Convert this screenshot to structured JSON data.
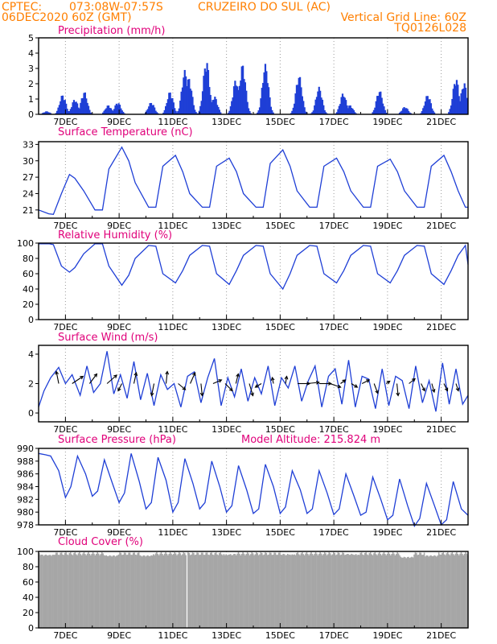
{
  "header": {
    "line1_left": "CPTEC:",
    "line1_coords": "073:08W-07:57S",
    "line1_station": "CRUZEIRO DO SUL (AC)",
    "line2_left": "06DEC2020 60Z (GMT)",
    "line2_right": "Vertical Grid Line: 60Z",
    "line3_right": "TQ0126L028"
  },
  "colors": {
    "header": "#ff7f00",
    "title": "#e0007a",
    "line": "#1f3fd6",
    "cloud": "#a6a6a6"
  },
  "x_tick_labels": [
    "7DEC",
    "9DEC",
    "11DEC",
    "13DEC",
    "15DEC",
    "17DEC",
    "19DEC",
    "21DEC"
  ],
  "chart_data": [
    {
      "type": "bar",
      "title": "Precipitation (mm/h)",
      "ylim": [
        0,
        5
      ],
      "yticks": [
        "0",
        "1",
        "2",
        "3",
        "4",
        "5"
      ],
      "grid": true,
      "peaks": [
        [
          6.3,
          0.2
        ],
        [
          6.9,
          1.3
        ],
        [
          7.35,
          1.0
        ],
        [
          7.7,
          1.5
        ],
        [
          8.6,
          0.6
        ],
        [
          8.95,
          0.8
        ],
        [
          10.2,
          0.8
        ],
        [
          10.9,
          1.5
        ],
        [
          11.45,
          2.9
        ],
        [
          11.6,
          2.4
        ],
        [
          12.25,
          3.6
        ],
        [
          12.55,
          1.2
        ],
        [
          13.35,
          2.3
        ],
        [
          13.6,
          3.3
        ],
        [
          14.45,
          3.3
        ],
        [
          15.7,
          2.6
        ],
        [
          16.45,
          1.8
        ],
        [
          17.35,
          1.4
        ],
        [
          17.6,
          0.6
        ],
        [
          18.7,
          1.6
        ],
        [
          19.65,
          0.5
        ],
        [
          20.5,
          1.3
        ],
        [
          21.55,
          2.4
        ],
        [
          21.85,
          2.1
        ]
      ],
      "spread": 0.16
    },
    {
      "type": "line",
      "title": "Surface Temperature (nC)",
      "ylim": [
        19.5,
        33.5
      ],
      "yticks": [
        "21",
        "24",
        "27",
        "30",
        "33"
      ],
      "grid": true,
      "series": [
        {
          "x": [
            6.0,
            6.38,
            6.55,
            6.85,
            7.15,
            7.35,
            7.68,
            8.1,
            8.38,
            8.62,
            9.1,
            9.36,
            9.6,
            10.1,
            10.37,
            10.63,
            11.1,
            11.37,
            11.63,
            12.1,
            12.37,
            12.63,
            13.1,
            13.37,
            13.63,
            14.1,
            14.37,
            14.63,
            15.1,
            15.37,
            15.63,
            16.1,
            16.37,
            16.63,
            17.1,
            17.37,
            17.63,
            18.1,
            18.37,
            18.63,
            19.1,
            19.37,
            19.63,
            20.1,
            20.37,
            20.63,
            21.1,
            21.37,
            21.63,
            21.9,
            22.0
          ],
          "y": [
            21.0,
            20.3,
            20.2,
            24.0,
            27.5,
            26.8,
            24.5,
            21.0,
            21.0,
            28.5,
            32.5,
            30.0,
            26.0,
            21.5,
            21.5,
            29.0,
            31.0,
            28.0,
            24.0,
            21.5,
            21.5,
            29.0,
            30.5,
            28.0,
            24.0,
            21.5,
            21.5,
            29.5,
            32.0,
            29.0,
            24.5,
            21.5,
            21.5,
            29.0,
            30.5,
            28.0,
            24.5,
            21.5,
            21.5,
            29.0,
            30.3,
            28.0,
            24.5,
            21.5,
            21.5,
            29.0,
            31.0,
            28.0,
            24.5,
            21.5,
            21.5
          ]
        }
      ]
    },
    {
      "type": "line",
      "title": "Relative Humidity (%)",
      "ylim": [
        0,
        100
      ],
      "yticks": [
        "0",
        "20",
        "40",
        "60",
        "80",
        "100"
      ],
      "grid": true,
      "series": [
        {
          "x": [
            6.0,
            6.4,
            6.55,
            6.85,
            7.15,
            7.35,
            7.68,
            8.1,
            8.38,
            8.62,
            9.1,
            9.36,
            9.6,
            10.1,
            10.37,
            10.63,
            11.1,
            11.37,
            11.63,
            12.1,
            12.37,
            12.63,
            13.1,
            13.37,
            13.63,
            14.1,
            14.37,
            14.63,
            15.1,
            15.37,
            15.63,
            16.1,
            16.37,
            16.63,
            17.1,
            17.37,
            17.63,
            18.1,
            18.37,
            18.63,
            19.1,
            19.37,
            19.63,
            20.1,
            20.37,
            20.63,
            21.1,
            21.37,
            21.63,
            21.9,
            22.0
          ],
          "y": [
            99,
            99,
            98,
            70,
            62,
            68,
            86,
            99,
            99,
            70,
            45,
            58,
            80,
            97,
            96,
            60,
            48,
            64,
            84,
            97,
            96,
            60,
            46,
            64,
            84,
            97,
            96,
            60,
            40,
            60,
            84,
            97,
            96,
            60,
            48,
            64,
            84,
            97,
            96,
            60,
            48,
            64,
            84,
            97,
            96,
            60,
            46,
            64,
            84,
            97,
            72
          ]
        }
      ]
    },
    {
      "type": "line",
      "title": "Surface Wind (m/s)",
      "ylim": [
        -0.6,
        4.6
      ],
      "yticks": [
        "0",
        "2",
        "4"
      ],
      "grid": true,
      "series": [
        {
          "x": [
            6.0,
            6.2,
            6.45,
            6.75,
            7.0,
            7.25,
            7.55,
            7.8,
            8.05,
            8.3,
            8.55,
            8.8,
            9.05,
            9.3,
            9.55,
            9.8,
            10.05,
            10.3,
            10.55,
            10.8,
            11.05,
            11.3,
            11.55,
            11.8,
            12.05,
            12.3,
            12.55,
            12.8,
            13.05,
            13.3,
            13.55,
            13.8,
            14.05,
            14.3,
            14.55,
            14.8,
            15.05,
            15.3,
            15.55,
            15.8,
            16.05,
            16.3,
            16.55,
            16.8,
            17.05,
            17.3,
            17.55,
            17.8,
            18.05,
            18.3,
            18.55,
            18.8,
            19.05,
            19.3,
            19.55,
            19.8,
            20.05,
            20.3,
            20.55,
            20.8,
            21.05,
            21.3,
            21.55,
            21.8,
            22.0
          ],
          "y": [
            0.4,
            1.5,
            2.4,
            3.1,
            2.0,
            2.6,
            1.2,
            3.2,
            1.4,
            2.0,
            4.2,
            1.3,
            2.6,
            1.0,
            3.5,
            0.9,
            2.7,
            0.5,
            2.6,
            1.6,
            2.0,
            0.4,
            2.5,
            2.8,
            0.7,
            2.4,
            3.7,
            0.5,
            2.4,
            1.1,
            3.0,
            0.8,
            2.4,
            1.3,
            3.2,
            0.5,
            2.4,
            1.7,
            3.2,
            0.8,
            2.2,
            3.2,
            0.4,
            2.5,
            3.0,
            0.6,
            3.6,
            0.4,
            2.5,
            2.3,
            0.3,
            3.0,
            0.5,
            2.5,
            2.2,
            0.3,
            3.2,
            0.7,
            2.2,
            0.1,
            3.4,
            0.6,
            3.0,
            0.6,
            1.2
          ]
        }
      ],
      "arrows": [
        {
          "x": 6.75,
          "u": -0.2,
          "v": 1.0
        },
        {
          "x": 7.25,
          "u": 0.9,
          "v": 0.6
        },
        {
          "x": 7.9,
          "u": 0.6,
          "v": 0.8
        },
        {
          "x": 8.55,
          "u": 0.8,
          "v": 0.7
        },
        {
          "x": 9.1,
          "u": -0.3,
          "v": -0.6
        },
        {
          "x": 9.55,
          "u": 0.2,
          "v": 0.9
        },
        {
          "x": 10.3,
          "u": -0.2,
          "v": -1.0
        },
        {
          "x": 10.75,
          "u": 0.1,
          "v": 1.0
        },
        {
          "x": 11.2,
          "u": 0.6,
          "v": -0.5
        },
        {
          "x": 11.65,
          "u": 0.4,
          "v": 0.9
        },
        {
          "x": 12.05,
          "u": 0.1,
          "v": -1.0
        },
        {
          "x": 12.5,
          "u": 0.7,
          "v": 0.3
        },
        {
          "x": 12.95,
          "u": 0.6,
          "v": -0.6
        },
        {
          "x": 13.35,
          "u": 0.2,
          "v": 0.8
        },
        {
          "x": 13.85,
          "u": 0.3,
          "v": -1.0
        },
        {
          "x": 14.3,
          "u": -0.5,
          "v": -0.3
        },
        {
          "x": 14.75,
          "u": -0.1,
          "v": 0.5
        },
        {
          "x": 15.2,
          "u": 0.1,
          "v": 0.6
        },
        {
          "x": 15.65,
          "u": 1.0,
          "v": 0.0
        },
        {
          "x": 16.0,
          "u": 1.0,
          "v": 0.1
        },
        {
          "x": 16.45,
          "u": 1.0,
          "v": 0.0
        },
        {
          "x": 16.85,
          "u": 0.9,
          "v": -0.3
        },
        {
          "x": 17.25,
          "u": 0.4,
          "v": 0.3
        },
        {
          "x": 17.65,
          "u": 0.5,
          "v": -0.3
        },
        {
          "x": 18.05,
          "u": 0.6,
          "v": 0.3
        },
        {
          "x": 18.5,
          "u": 0.3,
          "v": -0.8
        },
        {
          "x": 18.95,
          "u": 0.3,
          "v": 0.2
        },
        {
          "x": 19.35,
          "u": 0.1,
          "v": -1.0
        },
        {
          "x": 19.8,
          "u": 0.5,
          "v": 0.4
        },
        {
          "x": 20.25,
          "u": 0.3,
          "v": -0.6
        },
        {
          "x": 20.65,
          "u": 0.2,
          "v": -0.7
        },
        {
          "x": 21.1,
          "u": 0.3,
          "v": -0.6
        },
        {
          "x": 21.55,
          "u": 0.2,
          "v": -0.6
        }
      ]
    },
    {
      "type": "line",
      "title": "Surface Pressure (hPa)",
      "subtitle": "Model Altitude: 215.824 m",
      "ylim": [
        978,
        990
      ],
      "yticks": [
        "978",
        "980",
        "982",
        "984",
        "986",
        "988",
        "990"
      ],
      "grid": true,
      "series": [
        {
          "x": [
            6.0,
            6.25,
            6.45,
            6.75,
            7.0,
            7.2,
            7.45,
            7.75,
            8.0,
            8.2,
            8.45,
            8.75,
            9.0,
            9.2,
            9.45,
            9.75,
            10.0,
            10.2,
            10.45,
            10.75,
            11.0,
            11.2,
            11.45,
            11.75,
            12.0,
            12.2,
            12.45,
            12.75,
            13.0,
            13.2,
            13.45,
            13.75,
            14.0,
            14.2,
            14.45,
            14.75,
            15.0,
            15.2,
            15.45,
            15.75,
            16.0,
            16.2,
            16.45,
            16.75,
            17.0,
            17.2,
            17.45,
            17.75,
            18.0,
            18.2,
            18.45,
            18.75,
            19.0,
            19.2,
            19.45,
            19.75,
            20.0,
            20.2,
            20.45,
            20.75,
            21.0,
            21.2,
            21.45,
            21.75,
            22.0
          ],
          "y": [
            989.2,
            989.0,
            988.8,
            986.5,
            982.3,
            984.0,
            988.8,
            986.0,
            982.5,
            983.3,
            988.2,
            984.5,
            981.5,
            983.0,
            989.2,
            984.8,
            980.5,
            981.5,
            988.6,
            985.0,
            980.0,
            981.5,
            988.4,
            984.5,
            980.5,
            981.5,
            988.0,
            984.0,
            980.0,
            981.0,
            987.3,
            983.5,
            979.8,
            980.5,
            987.5,
            984.0,
            979.8,
            980.8,
            986.5,
            983.5,
            979.8,
            980.5,
            986.5,
            983.0,
            979.6,
            980.5,
            986.0,
            982.5,
            979.5,
            980.0,
            985.5,
            982.0,
            978.8,
            979.5,
            985.2,
            981.0,
            977.8,
            979.0,
            984.5,
            981.0,
            978.0,
            978.8,
            984.8,
            980.5,
            979.5
          ]
        }
      ]
    },
    {
      "type": "area",
      "title": "Cloud Cover (%)",
      "ylim": [
        0,
        100
      ],
      "yticks": [
        "0",
        "20",
        "40",
        "60",
        "80",
        "100"
      ],
      "grid": true,
      "base": 97,
      "clear_x": [
        11.5
      ],
      "dips": [
        [
          6.3,
          94
        ],
        [
          8.7,
          93
        ],
        [
          10.0,
          93
        ],
        [
          13.1,
          95
        ],
        [
          15.3,
          95
        ],
        [
          17.7,
          95
        ],
        [
          19.7,
          91
        ],
        [
          20.6,
          93
        ]
      ]
    }
  ]
}
